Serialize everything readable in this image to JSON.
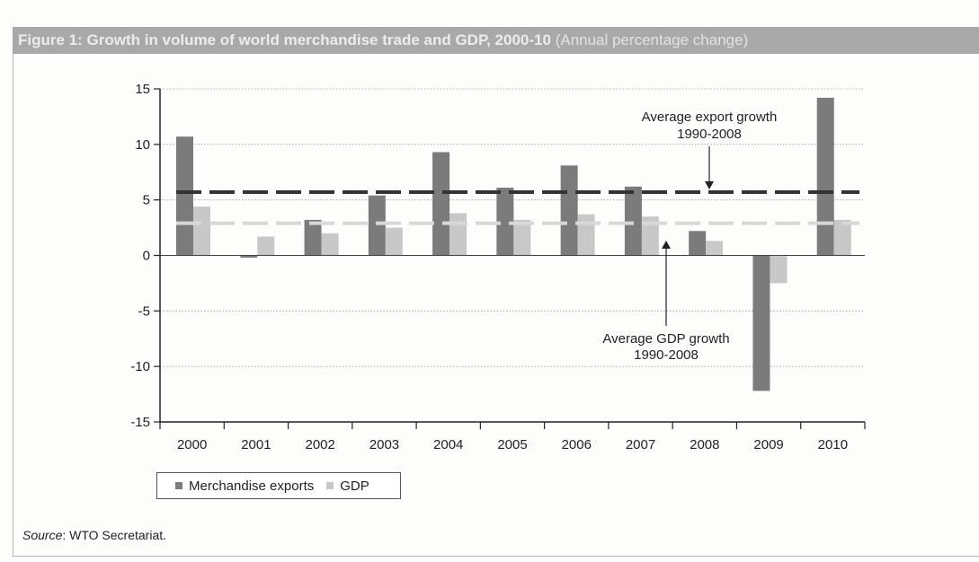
{
  "figure": {
    "title": "Figure 1: Growth in volume of world merchandise trade and GDP, 2000-10",
    "subtitle": "(Annual percentage change)",
    "source_label": "Source",
    "source_text": "WTO Secretariat."
  },
  "colors": {
    "exports": "#7b7b7b",
    "gdp": "#c8c8c8",
    "export_avg_line": "#333333",
    "gdp_avg_line": "#d8d8d8",
    "title_bar": "#a9a9a9"
  },
  "chart_data": {
    "type": "bar",
    "categories": [
      "2000",
      "2001",
      "2002",
      "2003",
      "2004",
      "2005",
      "2006",
      "2007",
      "2008",
      "2009",
      "2010"
    ],
    "series": [
      {
        "name": "Merchandise exports",
        "values": [
          10.7,
          -0.2,
          3.2,
          5.4,
          9.3,
          6.1,
          8.1,
          6.2,
          2.2,
          -12.2,
          14.2
        ]
      },
      {
        "name": "GDP",
        "values": [
          4.4,
          1.7,
          2.0,
          2.5,
          3.8,
          3.2,
          3.7,
          3.5,
          1.3,
          -2.5,
          3.2
        ]
      }
    ],
    "yticks": [
      15,
      10,
      5,
      0,
      -5,
      -10,
      -15
    ],
    "ylim": [
      -15,
      15
    ],
    "grid": true,
    "legend": "bottom-left",
    "annotations": [
      {
        "name": "export_average",
        "value": 5.7,
        "label_line1": "Average export growth",
        "label_line2": "1990-2008"
      },
      {
        "name": "gdp_average",
        "value": 2.9,
        "label_line1": "Average GDP growth",
        "label_line2": "1990-2008"
      }
    ]
  }
}
